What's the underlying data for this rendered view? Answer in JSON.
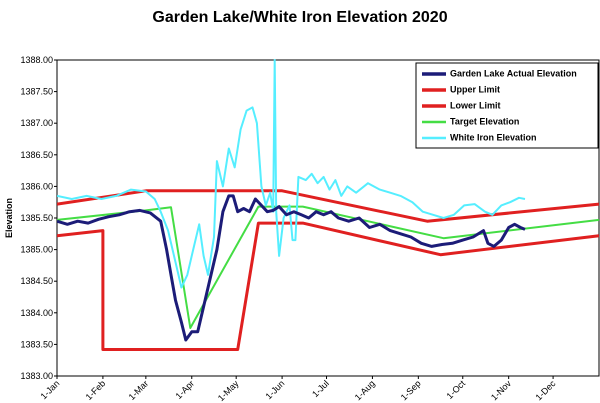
{
  "chart_data": {
    "type": "line",
    "title": "Garden Lake/White Iron Elevation 2020",
    "y_label": "Elevation",
    "xlim": [
      0,
      366
    ],
    "xticks": [
      {
        "value": 0,
        "label": "1-Jan"
      },
      {
        "value": 31,
        "label": "1-Feb"
      },
      {
        "value": 60,
        "label": "1-Mar"
      },
      {
        "value": 91,
        "label": "1-Apr"
      },
      {
        "value": 121,
        "label": "1-May"
      },
      {
        "value": 152,
        "label": "1-Jun"
      },
      {
        "value": 182,
        "label": "1-Jul"
      },
      {
        "value": 213,
        "label": "1-Aug"
      },
      {
        "value": 244,
        "label": "1-Sep"
      },
      {
        "value": 274,
        "label": "1-Oct"
      },
      {
        "value": 305,
        "label": "1-Nov"
      },
      {
        "value": 335,
        "label": "1-Dec"
      }
    ],
    "ylim": [
      1383,
      1388
    ],
    "yticks": [
      {
        "value": 1383,
        "label": "1383.00"
      },
      {
        "value": 1383.5,
        "label": "1383.50"
      },
      {
        "value": 1384,
        "label": "1384.00"
      },
      {
        "value": 1384.5,
        "label": "1384.50"
      },
      {
        "value": 1385,
        "label": "1385.00"
      },
      {
        "value": 1385.5,
        "label": "1385.50"
      },
      {
        "value": 1386,
        "label": "1386.00"
      },
      {
        "value": 1386.5,
        "label": "1386.50"
      },
      {
        "value": 1387,
        "label": "1387.00"
      },
      {
        "value": 1387.5,
        "label": "1387.50"
      },
      {
        "value": 1388,
        "label": "1388.00"
      }
    ],
    "grid": false,
    "legend": "upper right",
    "series": [
      {
        "name": "Garden Lake Actual Elevation",
        "color": "#1c1c78",
        "width": 3,
        "x": [
          0,
          7,
          14,
          21,
          28,
          35,
          42,
          49,
          56,
          63,
          70,
          74,
          77,
          80,
          84,
          87,
          91,
          95,
          100,
          104,
          108,
          112,
          116,
          119,
          122,
          126,
          130,
          134,
          138,
          142,
          146,
          150,
          155,
          160,
          165,
          170,
          175,
          180,
          185,
          190,
          197,
          204,
          211,
          218,
          225,
          232,
          239,
          246,
          253,
          260,
          267,
          274,
          281,
          288,
          291,
          295,
          300,
          305,
          309,
          313,
          316
        ],
        "values": [
          1385.45,
          1385.4,
          1385.45,
          1385.42,
          1385.48,
          1385.52,
          1385.55,
          1385.6,
          1385.62,
          1385.58,
          1385.45,
          1385.0,
          1384.6,
          1384.2,
          1383.85,
          1383.57,
          1383.7,
          1383.7,
          1384.2,
          1384.6,
          1385.0,
          1385.6,
          1385.85,
          1385.85,
          1385.6,
          1385.65,
          1385.6,
          1385.8,
          1385.7,
          1385.6,
          1385.62,
          1385.68,
          1385.55,
          1385.6,
          1385.55,
          1385.5,
          1385.6,
          1385.55,
          1385.6,
          1385.5,
          1385.45,
          1385.5,
          1385.35,
          1385.4,
          1385.3,
          1385.25,
          1385.2,
          1385.1,
          1385.05,
          1385.08,
          1385.1,
          1385.15,
          1385.2,
          1385.3,
          1385.1,
          1385.05,
          1385.15,
          1385.35,
          1385.4,
          1385.35,
          1385.32
        ]
      },
      {
        "name": "Upper Limit",
        "color": "#e02020",
        "width": 3,
        "x": [
          0,
          60,
          152,
          250,
          366
        ],
        "values": [
          1385.72,
          1385.93,
          1385.93,
          1385.45,
          1385.72
        ]
      },
      {
        "name": "Lower Limit",
        "color": "#e02020",
        "width": 3,
        "x": [
          0,
          31,
          31,
          122,
          136,
          166,
          259,
          366
        ],
        "values": [
          1385.22,
          1385.3,
          1383.42,
          1383.42,
          1385.42,
          1385.42,
          1384.92,
          1385.22
        ]
      },
      {
        "name": "Target Elevation",
        "color": "#44dd44",
        "width": 2,
        "x": [
          0,
          60,
          77,
          90,
          136,
          166,
          261,
          366
        ],
        "values": [
          1385.47,
          1385.62,
          1385.67,
          1383.76,
          1385.68,
          1385.68,
          1385.18,
          1385.47
        ]
      },
      {
        "name": "White Iron Elevation",
        "color": "#55eeff",
        "width": 2,
        "x": [
          0,
          10,
          20,
          30,
          40,
          50,
          60,
          66,
          70,
          75,
          80,
          84,
          88,
          92,
          96,
          99,
          102,
          106,
          108,
          112,
          116,
          120,
          124,
          128,
          132,
          135,
          138,
          141,
          144,
          146,
          147,
          148,
          150,
          153,
          157,
          159,
          161,
          163,
          168,
          172,
          176,
          180,
          184,
          188,
          192,
          196,
          202,
          210,
          218,
          225,
          232,
          240,
          247,
          254,
          261,
          268,
          275,
          282,
          289,
          294,
          300,
          306,
          312,
          316
        ],
        "values": [
          1385.85,
          1385.8,
          1385.85,
          1385.8,
          1385.85,
          1385.95,
          1385.92,
          1385.8,
          1385.6,
          1385.3,
          1384.8,
          1384.4,
          1384.6,
          1385.0,
          1385.4,
          1384.9,
          1384.6,
          1385.2,
          1386.4,
          1386.0,
          1386.6,
          1386.3,
          1386.9,
          1387.2,
          1387.25,
          1387.0,
          1386.0,
          1385.7,
          1385.9,
          1385.6,
          1388.0,
          1385.6,
          1384.9,
          1385.5,
          1385.7,
          1385.15,
          1385.15,
          1386.15,
          1386.1,
          1386.2,
          1386.05,
          1386.15,
          1385.95,
          1386.1,
          1385.85,
          1386.0,
          1385.9,
          1386.05,
          1385.95,
          1385.9,
          1385.85,
          1385.75,
          1385.6,
          1385.55,
          1385.5,
          1385.55,
          1385.7,
          1385.72,
          1385.6,
          1385.55,
          1385.7,
          1385.75,
          1385.82,
          1385.8
        ]
      }
    ]
  }
}
